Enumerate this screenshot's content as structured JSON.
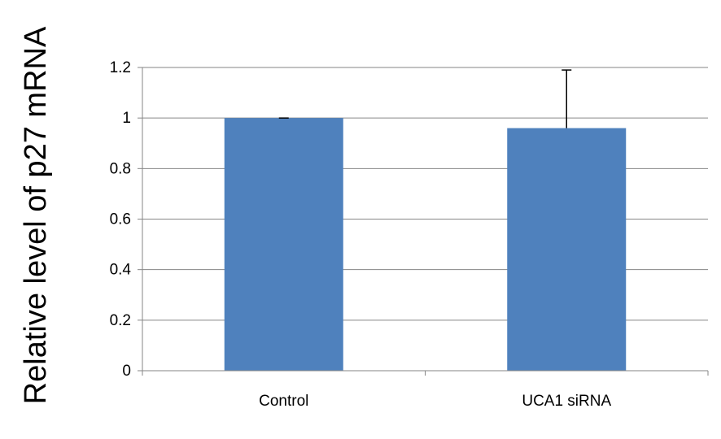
{
  "chart_data": {
    "type": "bar",
    "ylabel": "Relative level of p27 mRNA",
    "categories": [
      "Control",
      "UCA1 siRNA"
    ],
    "values": [
      1.0,
      0.96
    ],
    "errors": [
      0.0,
      0.23
    ],
    "ylim": [
      0,
      1.2
    ],
    "yticks": [
      "0",
      "0.2",
      "0.4",
      "0.6",
      "0.8",
      "1",
      "1.2"
    ],
    "grid": true,
    "legend": "none",
    "colors": {
      "bar": "#4f81bd",
      "grid": "#868686",
      "axis": "#868686",
      "error_bar": "#000000"
    }
  }
}
